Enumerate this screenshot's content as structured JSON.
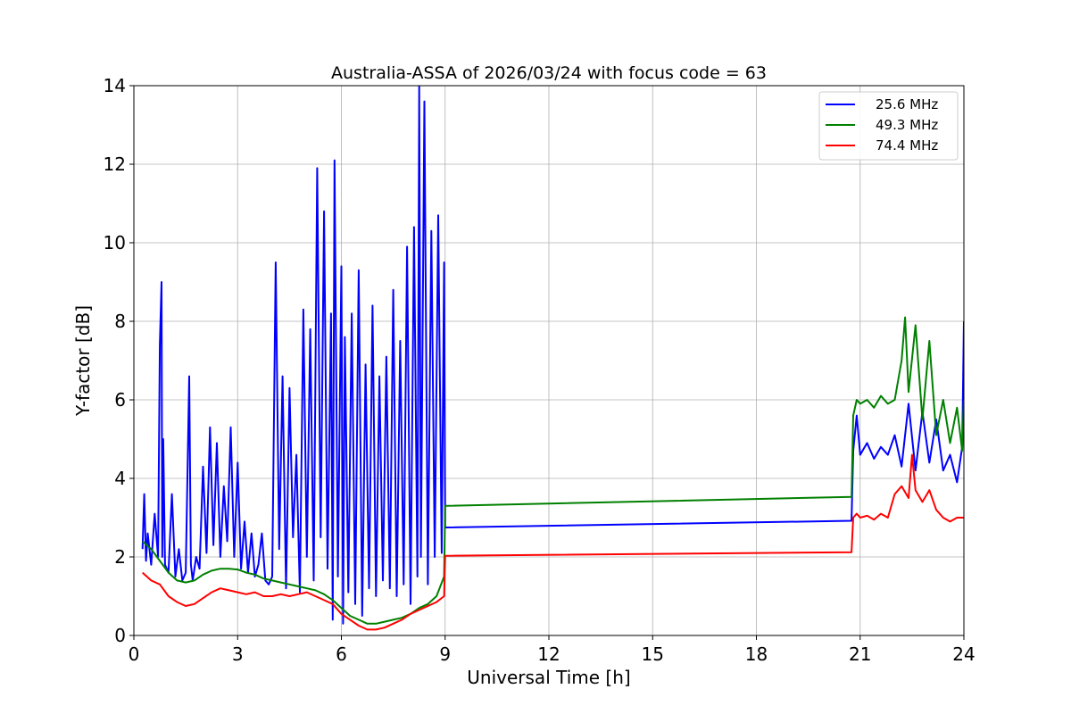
{
  "chart_data": {
    "type": "line",
    "title": "Australia-ASSA of 2026/03/24 with focus code = 63",
    "xlabel": "Universal Time [h]",
    "ylabel": "Y-factor [dB]",
    "xlim": [
      0,
      24
    ],
    "ylim": [
      0,
      14
    ],
    "xticks": [
      0,
      3,
      6,
      9,
      12,
      15,
      18,
      21,
      24
    ],
    "yticks": [
      0,
      2,
      4,
      6,
      8,
      10,
      12,
      14
    ],
    "grid": true,
    "legend_position": "top-right",
    "series": [
      {
        "name": "25.6 MHz",
        "color": "#0000ff",
        "x": [
          0.25,
          0.3,
          0.35,
          0.4,
          0.5,
          0.6,
          0.7,
          0.75,
          0.8,
          0.82,
          0.85,
          0.9,
          1.0,
          1.1,
          1.2,
          1.3,
          1.4,
          1.5,
          1.6,
          1.65,
          1.7,
          1.8,
          1.9,
          2.0,
          2.1,
          2.2,
          2.3,
          2.4,
          2.5,
          2.6,
          2.7,
          2.8,
          2.9,
          3.0,
          3.1,
          3.2,
          3.3,
          3.4,
          3.5,
          3.6,
          3.7,
          3.8,
          3.9,
          4.0,
          4.1,
          4.2,
          4.3,
          4.4,
          4.5,
          4.6,
          4.7,
          4.8,
          4.9,
          5.0,
          5.1,
          5.2,
          5.3,
          5.4,
          5.5,
          5.6,
          5.7,
          5.75,
          5.8,
          5.9,
          6.0,
          6.05,
          6.1,
          6.2,
          6.3,
          6.4,
          6.5,
          6.6,
          6.7,
          6.8,
          6.9,
          7.0,
          7.1,
          7.2,
          7.3,
          7.4,
          7.5,
          7.6,
          7.7,
          7.8,
          7.9,
          8.0,
          8.1,
          8.2,
          8.25,
          8.3,
          8.4,
          8.5,
          8.6,
          8.7,
          8.8,
          8.9,
          8.97,
          9.0,
          20.75,
          20.8,
          20.9,
          21.0,
          21.2,
          21.4,
          21.6,
          21.8,
          22.0,
          22.2,
          22.4,
          22.6,
          22.8,
          23.0,
          23.2,
          23.4,
          23.6,
          23.8,
          23.95,
          24.0
        ],
        "y": [
          2.2,
          3.6,
          1.9,
          2.6,
          1.8,
          3.1,
          2.0,
          7.4,
          9.0,
          2.0,
          5.0,
          1.8,
          1.6,
          3.6,
          1.5,
          2.2,
          1.4,
          1.6,
          6.6,
          1.8,
          1.4,
          2.0,
          1.7,
          4.3,
          2.1,
          5.3,
          2.3,
          4.9,
          2.0,
          3.8,
          2.4,
          5.3,
          2.0,
          4.4,
          1.7,
          2.9,
          1.6,
          2.6,
          1.5,
          1.8,
          2.6,
          1.4,
          1.3,
          1.5,
          9.5,
          2.2,
          6.6,
          1.2,
          6.3,
          2.5,
          4.6,
          1.1,
          8.3,
          2.0,
          7.8,
          1.4,
          11.9,
          2.5,
          10.8,
          1.7,
          8.2,
          0.4,
          12.1,
          1.5,
          9.4,
          0.3,
          7.6,
          1.1,
          8.2,
          0.8,
          9.3,
          0.5,
          6.9,
          1.2,
          8.4,
          1.0,
          6.6,
          1.4,
          7.1,
          1.2,
          8.8,
          1.0,
          7.5,
          1.3,
          9.9,
          0.8,
          10.4,
          1.5,
          14.0,
          2.0,
          13.6,
          1.3,
          10.3,
          2.0,
          10.7,
          2.1,
          9.5,
          2.75,
          2.92,
          4.7,
          5.6,
          4.6,
          4.9,
          4.5,
          4.8,
          4.6,
          5.1,
          4.3,
          5.9,
          4.2,
          5.7,
          4.4,
          5.5,
          4.2,
          4.6,
          3.9,
          4.8,
          8.0
        ]
      },
      {
        "name": "49.3 MHz",
        "color": "#008000",
        "x": [
          0.25,
          0.5,
          0.75,
          1.0,
          1.25,
          1.5,
          1.75,
          2.0,
          2.25,
          2.5,
          2.75,
          3.0,
          3.25,
          3.5,
          3.75,
          4.0,
          4.25,
          4.5,
          4.75,
          5.0,
          5.25,
          5.5,
          5.75,
          6.0,
          6.25,
          6.5,
          6.75,
          7.0,
          7.25,
          7.5,
          7.75,
          8.0,
          8.25,
          8.5,
          8.75,
          8.97,
          9.0,
          20.75,
          20.8,
          20.9,
          21.0,
          21.2,
          21.4,
          21.6,
          21.8,
          22.0,
          22.2,
          22.3,
          22.4,
          22.6,
          22.8,
          23.0,
          23.2,
          23.4,
          23.6,
          23.8,
          23.95,
          24.0
        ],
        "y": [
          2.4,
          2.2,
          1.9,
          1.6,
          1.4,
          1.35,
          1.4,
          1.55,
          1.65,
          1.7,
          1.7,
          1.68,
          1.6,
          1.55,
          1.45,
          1.4,
          1.35,
          1.3,
          1.25,
          1.2,
          1.15,
          1.05,
          0.9,
          0.7,
          0.5,
          0.4,
          0.3,
          0.3,
          0.35,
          0.4,
          0.45,
          0.55,
          0.7,
          0.8,
          1.0,
          1.5,
          3.3,
          3.53,
          5.6,
          6.0,
          5.9,
          6.0,
          5.8,
          6.1,
          5.9,
          6.0,
          7.0,
          8.1,
          6.2,
          7.9,
          5.5,
          7.5,
          5.1,
          6.0,
          4.9,
          5.8,
          4.7,
          6.0
        ]
      },
      {
        "name": "74.4 MHz",
        "color": "#ff0000",
        "x": [
          0.25,
          0.5,
          0.75,
          1.0,
          1.25,
          1.5,
          1.75,
          2.0,
          2.25,
          2.5,
          2.75,
          3.0,
          3.25,
          3.5,
          3.75,
          4.0,
          4.25,
          4.5,
          4.75,
          5.0,
          5.25,
          5.5,
          5.75,
          6.0,
          6.25,
          6.5,
          6.75,
          7.0,
          7.25,
          7.5,
          7.75,
          8.0,
          8.25,
          8.5,
          8.75,
          8.97,
          9.0,
          20.75,
          20.8,
          20.9,
          21.0,
          21.2,
          21.4,
          21.6,
          21.8,
          22.0,
          22.2,
          22.4,
          22.5,
          22.6,
          22.8,
          23.0,
          23.2,
          23.4,
          23.6,
          23.8,
          24.0
        ],
        "y": [
          1.6,
          1.4,
          1.3,
          1.0,
          0.85,
          0.75,
          0.8,
          0.95,
          1.1,
          1.2,
          1.15,
          1.1,
          1.05,
          1.1,
          1.0,
          1.0,
          1.05,
          1.0,
          1.05,
          1.1,
          1.0,
          0.9,
          0.8,
          0.55,
          0.4,
          0.25,
          0.15,
          0.15,
          0.2,
          0.3,
          0.4,
          0.55,
          0.65,
          0.75,
          0.85,
          1.0,
          2.03,
          2.12,
          3.0,
          3.1,
          3.0,
          3.05,
          2.95,
          3.1,
          3.0,
          3.6,
          3.8,
          3.5,
          4.6,
          3.7,
          3.4,
          3.7,
          3.2,
          3.0,
          2.9,
          3.0,
          3.0
        ]
      }
    ]
  }
}
